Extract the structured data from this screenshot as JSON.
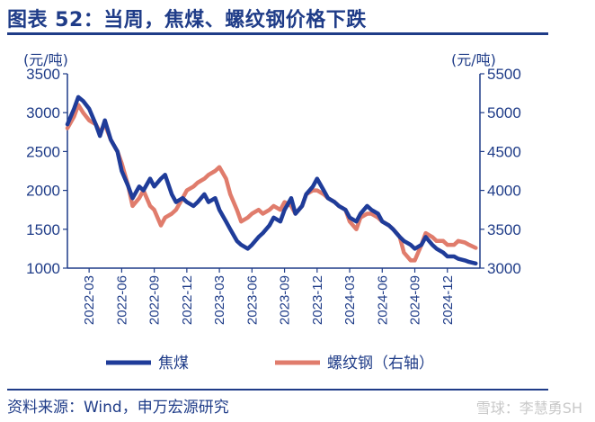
{
  "header": {
    "title": "图表 52：当周，焦煤、螺纹钢价格下跌"
  },
  "footer": {
    "source": "资料来源：Wind，申万宏源研究",
    "watermark": "雪球：李慧勇SH"
  },
  "chart_data": {
    "type": "line",
    "left_unit": "(元/吨)",
    "right_unit": "(元/吨)",
    "y_left": {
      "min": 1000,
      "max": 3500,
      "ticks": [
        1000,
        1500,
        2000,
        2500,
        3000,
        3500
      ]
    },
    "y_right": {
      "min": 3000,
      "max": 5500,
      "ticks": [
        3000,
        3500,
        4000,
        4500,
        5000,
        5500
      ]
    },
    "x_range": [
      "2022-01",
      "2025-03"
    ],
    "x_ticks": [
      "2022-03",
      "2022-06",
      "2022-09",
      "2022-12",
      "2023-03",
      "2023-06",
      "2023-09",
      "2023-12",
      "2024-03",
      "2024-06",
      "2024-09",
      "2024-12"
    ],
    "grid": false,
    "legend_position": "bottom",
    "colors": {
      "coking_coal": "#1f3c99",
      "rebar": "#e07c6c",
      "axis": "#1f3c88"
    },
    "series": [
      {
        "name": "焦煤",
        "axis": "left",
        "points": [
          [
            "2022-01",
            2850
          ],
          [
            "2022-01-20",
            3050
          ],
          [
            "2022-02",
            3200
          ],
          [
            "2022-02-15",
            3150
          ],
          [
            "2022-03",
            3050
          ],
          [
            "2022-03-20",
            2850
          ],
          [
            "2022-04",
            2700
          ],
          [
            "2022-04-15",
            2900
          ],
          [
            "2022-05",
            2650
          ],
          [
            "2022-05-20",
            2500
          ],
          [
            "2022-06",
            2250
          ],
          [
            "2022-06-20",
            2050
          ],
          [
            "2022-07",
            1900
          ],
          [
            "2022-07-20",
            2050
          ],
          [
            "2022-08",
            2000
          ],
          [
            "2022-08-20",
            2150
          ],
          [
            "2022-09",
            2050
          ],
          [
            "2022-09-20",
            2150
          ],
          [
            "2022-10",
            2200
          ],
          [
            "2022-10-20",
            1950
          ],
          [
            "2022-11",
            1850
          ],
          [
            "2022-11-20",
            1900
          ],
          [
            "2022-12",
            1850
          ],
          [
            "2022-12-20",
            1800
          ],
          [
            "2023-01",
            1850
          ],
          [
            "2023-01-20",
            1950
          ],
          [
            "2023-02",
            1850
          ],
          [
            "2023-02-20",
            1900
          ],
          [
            "2023-03",
            1750
          ],
          [
            "2023-03-20",
            1600
          ],
          [
            "2023-04",
            1500
          ],
          [
            "2023-04-20",
            1350
          ],
          [
            "2023-05",
            1300
          ],
          [
            "2023-05-20",
            1250
          ],
          [
            "2023-06",
            1300
          ],
          [
            "2023-06-20",
            1400
          ],
          [
            "2023-07",
            1450
          ],
          [
            "2023-07-20",
            1550
          ],
          [
            "2023-08",
            1650
          ],
          [
            "2023-08-20",
            1600
          ],
          [
            "2023-09",
            1750
          ],
          [
            "2023-09-20",
            1900
          ],
          [
            "2023-10",
            1700
          ],
          [
            "2023-10-20",
            1800
          ],
          [
            "2023-11",
            1950
          ],
          [
            "2023-11-20",
            2050
          ],
          [
            "2023-12",
            2150
          ],
          [
            "2023-12-20",
            2000
          ],
          [
            "2024-01",
            1900
          ],
          [
            "2024-01-20",
            1850
          ],
          [
            "2024-02",
            1800
          ],
          [
            "2024-02-20",
            1750
          ],
          [
            "2024-03",
            1650
          ],
          [
            "2024-03-20",
            1600
          ],
          [
            "2024-04",
            1700
          ],
          [
            "2024-04-20",
            1800
          ],
          [
            "2024-05",
            1750
          ],
          [
            "2024-05-20",
            1700
          ],
          [
            "2024-06",
            1600
          ],
          [
            "2024-06-20",
            1550
          ],
          [
            "2024-07",
            1500
          ],
          [
            "2024-07-20",
            1400
          ],
          [
            "2024-08",
            1350
          ],
          [
            "2024-08-20",
            1300
          ],
          [
            "2024-09",
            1250
          ],
          [
            "2024-09-20",
            1300
          ],
          [
            "2024-10",
            1400
          ],
          [
            "2024-10-20",
            1300
          ],
          [
            "2024-11",
            1250
          ],
          [
            "2024-11-20",
            1200
          ],
          [
            "2024-12",
            1150
          ],
          [
            "2024-12-20",
            1150
          ],
          [
            "2025-01",
            1120
          ],
          [
            "2025-01-20",
            1100
          ],
          [
            "2025-02",
            1080
          ],
          [
            "2025-02-20",
            1060
          ]
        ]
      },
      {
        "name": "螺纹钢（右轴）",
        "axis": "right",
        "points": [
          [
            "2022-01",
            4800
          ],
          [
            "2022-01-20",
            4950
          ],
          [
            "2022-02",
            5100
          ],
          [
            "2022-02-15",
            5000
          ],
          [
            "2022-03",
            4900
          ],
          [
            "2022-03-20",
            4850
          ],
          [
            "2022-04",
            4750
          ],
          [
            "2022-04-15",
            4850
          ],
          [
            "2022-05",
            4650
          ],
          [
            "2022-05-20",
            4500
          ],
          [
            "2022-06",
            4350
          ],
          [
            "2022-06-20",
            4050
          ],
          [
            "2022-07",
            3800
          ],
          [
            "2022-07-20",
            3900
          ],
          [
            "2022-08",
            4000
          ],
          [
            "2022-08-20",
            3800
          ],
          [
            "2022-09",
            3750
          ],
          [
            "2022-09-20",
            3550
          ],
          [
            "2022-10",
            3650
          ],
          [
            "2022-10-20",
            3700
          ],
          [
            "2022-11",
            3750
          ],
          [
            "2022-11-20",
            3900
          ],
          [
            "2022-12",
            4000
          ],
          [
            "2022-12-20",
            4050
          ],
          [
            "2023-01",
            4100
          ],
          [
            "2023-01-20",
            4150
          ],
          [
            "2023-02",
            4200
          ],
          [
            "2023-02-20",
            4250
          ],
          [
            "2023-03",
            4300
          ],
          [
            "2023-03-20",
            4150
          ],
          [
            "2023-04",
            3950
          ],
          [
            "2023-04-20",
            3750
          ],
          [
            "2023-05",
            3600
          ],
          [
            "2023-05-20",
            3650
          ],
          [
            "2023-06",
            3700
          ],
          [
            "2023-06-20",
            3750
          ],
          [
            "2023-07",
            3700
          ],
          [
            "2023-07-20",
            3750
          ],
          [
            "2023-08",
            3800
          ],
          [
            "2023-08-20",
            3750
          ],
          [
            "2023-09",
            3850
          ],
          [
            "2023-09-20",
            3800
          ],
          [
            "2023-10",
            3700
          ],
          [
            "2023-10-20",
            3800
          ],
          [
            "2023-11",
            3950
          ],
          [
            "2023-11-20",
            4000
          ],
          [
            "2023-12",
            4000
          ],
          [
            "2023-12-20",
            3950
          ],
          [
            "2024-01",
            3900
          ],
          [
            "2024-01-20",
            3850
          ],
          [
            "2024-02",
            3800
          ],
          [
            "2024-02-20",
            3750
          ],
          [
            "2024-03",
            3600
          ],
          [
            "2024-03-20",
            3500
          ],
          [
            "2024-04",
            3650
          ],
          [
            "2024-04-20",
            3700
          ],
          [
            "2024-05",
            3700
          ],
          [
            "2024-05-20",
            3650
          ],
          [
            "2024-06",
            3600
          ],
          [
            "2024-06-20",
            3550
          ],
          [
            "2024-07",
            3500
          ],
          [
            "2024-07-20",
            3400
          ],
          [
            "2024-08",
            3200
          ],
          [
            "2024-08-20",
            3100
          ],
          [
            "2024-09",
            3100
          ],
          [
            "2024-09-20",
            3300
          ],
          [
            "2024-10",
            3450
          ],
          [
            "2024-10-20",
            3400
          ],
          [
            "2024-11",
            3350
          ],
          [
            "2024-11-20",
            3350
          ],
          [
            "2024-12",
            3300
          ],
          [
            "2024-12-20",
            3300
          ],
          [
            "2025-01",
            3350
          ],
          [
            "2025-01-20",
            3330
          ],
          [
            "2025-02",
            3300
          ],
          [
            "2025-02-20",
            3260
          ]
        ]
      }
    ]
  }
}
